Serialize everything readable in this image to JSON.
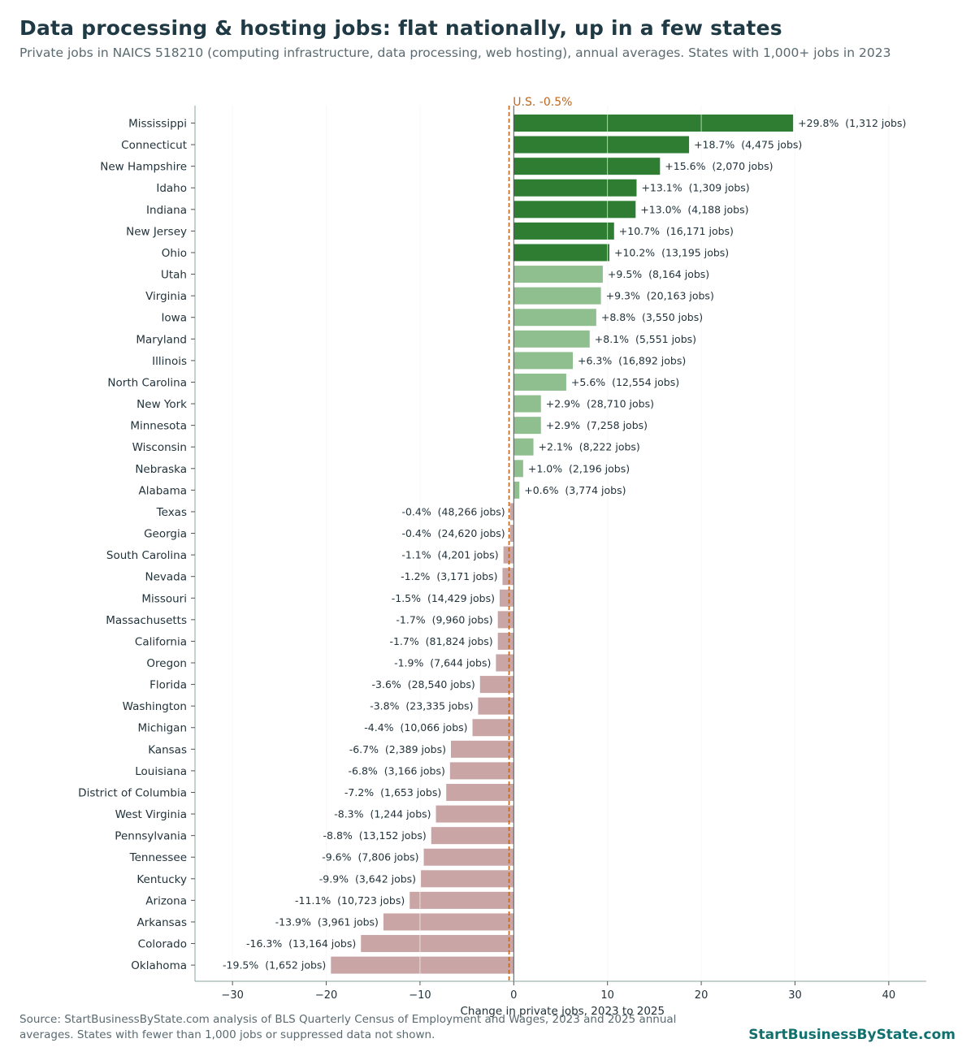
{
  "header": {
    "title": "Data processing & hosting jobs: flat nationally, up in a few states",
    "subtitle": "Private jobs in NAICS 518210 (computing infrastructure, data processing, web hosting), annual averages. States with 1,000+ jobs in 2023"
  },
  "footer": {
    "source": "Source: StartBusinessByState.com analysis of BLS Quarterly Census of Employment and Wages, 2023 and 2025 annual averages. States with fewer than 1,000 jobs or suppressed data not shown.",
    "brand": "StartBusinessByState.com"
  },
  "colors": {
    "strong_growth": "#2e7d32",
    "growth": "#8fbf8f",
    "decline": "#c9a5a5",
    "reference_line": "#c0661b",
    "grid": "#ececec",
    "axis": "#8aa6a3"
  },
  "chart_data": {
    "type": "bar",
    "orientation": "horizontal",
    "xlabel": "Change in private jobs, 2023 to 2025",
    "xlim": [
      -34,
      44
    ],
    "xticks": [
      -30,
      -20,
      -10,
      0,
      10,
      20,
      30,
      40
    ],
    "xtick_labels": [
      "−30",
      "−20",
      "−10",
      "0",
      "10",
      "20",
      "30",
      "40"
    ],
    "grid": "vertical",
    "reference_line": {
      "value": -0.5,
      "label": "U.S. -0.5%"
    },
    "categories": [
      "Mississippi",
      "Connecticut",
      "New Hampshire",
      "Idaho",
      "Indiana",
      "New Jersey",
      "Ohio",
      "Utah",
      "Virginia",
      "Iowa",
      "Maryland",
      "Illinois",
      "North Carolina",
      "New York",
      "Minnesota",
      "Wisconsin",
      "Nebraska",
      "Alabama",
      "Texas",
      "Georgia",
      "South Carolina",
      "Nevada",
      "Missouri",
      "Massachusetts",
      "California",
      "Oregon",
      "Florida",
      "Washington",
      "Michigan",
      "Kansas",
      "Louisiana",
      "District of Columbia",
      "West Virginia",
      "Pennsylvania",
      "Tennessee",
      "Kentucky",
      "Arizona",
      "Arkansas",
      "Colorado",
      "Oklahoma"
    ],
    "values": [
      29.8,
      18.7,
      15.6,
      13.1,
      13.0,
      10.7,
      10.2,
      9.5,
      9.3,
      8.8,
      8.1,
      6.3,
      5.6,
      2.9,
      2.9,
      2.1,
      1.0,
      0.6,
      -0.4,
      -0.4,
      -1.1,
      -1.2,
      -1.5,
      -1.7,
      -1.7,
      -1.9,
      -3.6,
      -3.8,
      -4.4,
      -6.7,
      -6.8,
      -7.2,
      -8.3,
      -8.8,
      -9.6,
      -9.9,
      -11.1,
      -13.9,
      -16.3,
      -19.5
    ],
    "value_labels": [
      "+29.8%  (1,312 jobs)",
      "+18.7%  (4,475 jobs)",
      "+15.6%  (2,070 jobs)",
      "+13.1%  (1,309 jobs)",
      "+13.0%  (4,188 jobs)",
      "+10.7%  (16,171 jobs)",
      "+10.2%  (13,195 jobs)",
      "+9.5%  (8,164 jobs)",
      "+9.3%  (20,163 jobs)",
      "+8.8%  (3,550 jobs)",
      "+8.1%  (5,551 jobs)",
      "+6.3%  (16,892 jobs)",
      "+5.6%  (12,554 jobs)",
      "+2.9%  (28,710 jobs)",
      "+2.9%  (7,258 jobs)",
      "+2.1%  (8,222 jobs)",
      "+1.0%  (2,196 jobs)",
      "+0.6%  (3,774 jobs)",
      "-0.4%  (48,266 jobs)",
      "-0.4%  (24,620 jobs)",
      "-1.1%  (4,201 jobs)",
      "-1.2%  (3,171 jobs)",
      "-1.5%  (14,429 jobs)",
      "-1.7%  (9,960 jobs)",
      "-1.7%  (81,824 jobs)",
      "-1.9%  (7,644 jobs)",
      "-3.6%  (28,540 jobs)",
      "-3.8%  (23,335 jobs)",
      "-4.4%  (10,066 jobs)",
      "-6.7%  (2,389 jobs)",
      "-6.8%  (3,166 jobs)",
      "-7.2%  (1,653 jobs)",
      "-8.3%  (1,244 jobs)",
      "-8.8%  (13,152 jobs)",
      "-9.6%  (7,806 jobs)",
      "-9.9%  (3,642 jobs)",
      "-11.1%  (10,723 jobs)",
      "-13.9%  (3,961 jobs)",
      "-16.3%  (13,164 jobs)",
      "-19.5%  (1,652 jobs)"
    ]
  }
}
